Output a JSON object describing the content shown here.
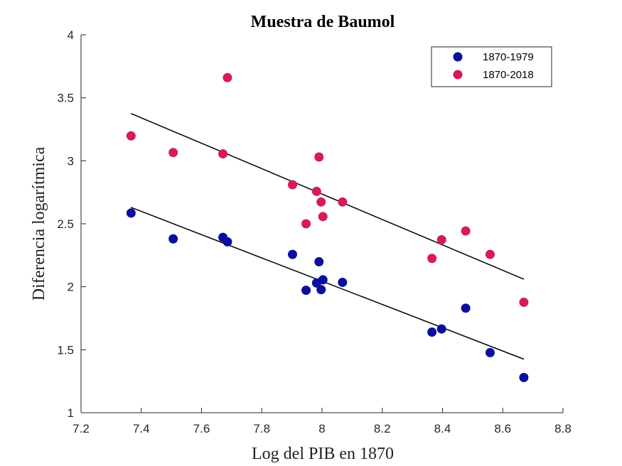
{
  "chart_data": {
    "type": "scatter",
    "title": "Muestra de Baumol",
    "xlabel": "Log del PIB en 1870",
    "ylabel": "Diferencia logarítmica",
    "xlim": [
      7.2,
      8.8
    ],
    "ylim": [
      1,
      4
    ],
    "xticks": [
      7.2,
      7.4,
      7.6,
      7.8,
      8,
      8.2,
      8.4,
      8.6,
      8.8
    ],
    "yticks": [
      1,
      1.5,
      2,
      2.5,
      3,
      3.5,
      4
    ],
    "xtick_labels": [
      "7.2",
      "7.4",
      "7.6",
      "7.8",
      "8",
      "8.2",
      "8.4",
      "8.6",
      "8.8"
    ],
    "ytick_labels": [
      "1",
      "1.5",
      "2",
      "2.5",
      "3",
      "3.5",
      "4"
    ],
    "grid": false,
    "legend_position": "top-right",
    "series": [
      {
        "name": "1870-1979",
        "color": "#0a0f9e",
        "points": [
          {
            "x": 7.366,
            "y": 2.585
          },
          {
            "x": 7.506,
            "y": 2.38
          },
          {
            "x": 7.671,
            "y": 2.392
          },
          {
            "x": 7.686,
            "y": 2.357
          },
          {
            "x": 7.902,
            "y": 2.257
          },
          {
            "x": 7.947,
            "y": 1.972
          },
          {
            "x": 7.982,
            "y": 2.03
          },
          {
            "x": 7.99,
            "y": 2.198
          },
          {
            "x": 7.997,
            "y": 1.977
          },
          {
            "x": 8.003,
            "y": 2.055
          },
          {
            "x": 8.068,
            "y": 2.035
          },
          {
            "x": 8.365,
            "y": 1.64
          },
          {
            "x": 8.397,
            "y": 1.665
          },
          {
            "x": 8.477,
            "y": 1.83
          },
          {
            "x": 8.558,
            "y": 1.477
          },
          {
            "x": 8.67,
            "y": 1.28
          }
        ],
        "fit_line": {
          "x": [
            7.366,
            8.67
          ],
          "y": [
            2.63,
            1.425
          ]
        }
      },
      {
        "name": "1870-2018",
        "color": "#d61a5a",
        "points": [
          {
            "x": 7.366,
            "y": 3.198
          },
          {
            "x": 7.506,
            "y": 3.065
          },
          {
            "x": 7.671,
            "y": 3.055
          },
          {
            "x": 7.686,
            "y": 3.66
          },
          {
            "x": 7.902,
            "y": 2.81
          },
          {
            "x": 7.947,
            "y": 2.5
          },
          {
            "x": 7.982,
            "y": 2.757
          },
          {
            "x": 7.99,
            "y": 3.03
          },
          {
            "x": 7.997,
            "y": 2.673
          },
          {
            "x": 8.003,
            "y": 2.557
          },
          {
            "x": 8.068,
            "y": 2.673
          },
          {
            "x": 8.365,
            "y": 2.225
          },
          {
            "x": 8.397,
            "y": 2.373
          },
          {
            "x": 8.477,
            "y": 2.443
          },
          {
            "x": 8.558,
            "y": 2.257
          },
          {
            "x": 8.67,
            "y": 1.877
          }
        ],
        "fit_line": {
          "x": [
            7.366,
            8.67
          ],
          "y": [
            3.375,
            2.06
          ]
        }
      }
    ]
  }
}
